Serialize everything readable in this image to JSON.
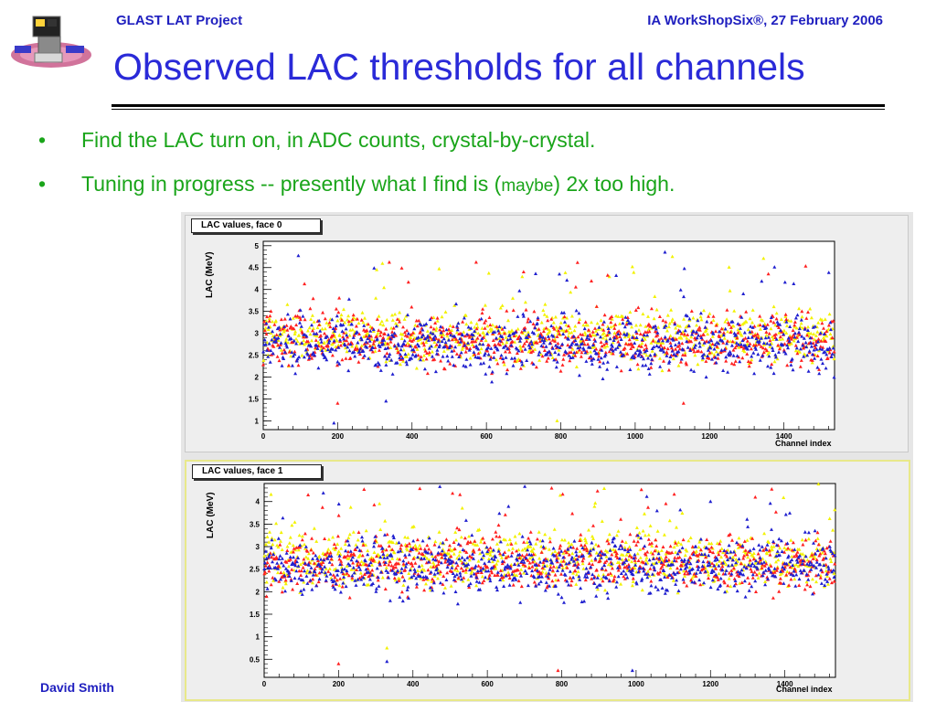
{
  "header": {
    "project": "GLAST LAT Project",
    "event": "IA WorkShopSix®, 27 February 2006"
  },
  "title": "Observed LAC thresholds for all channels",
  "bullets": [
    {
      "marker": "•",
      "text": "Find the LAC turn on, in ADC counts, crystal-by-crystal."
    },
    {
      "marker": "•",
      "pre": "Tuning in progress -- presently what I find is (",
      "small": "maybe",
      "post": ") 2x  too high."
    }
  ],
  "footer": {
    "author": "David Smith"
  },
  "colors": {
    "series_a": "#ff2020",
    "series_b": "#1f1fcf",
    "series_c": "#f2f200",
    "text_blue": "#1f1fbf",
    "bullet_green": "#1aa51a"
  },
  "chart_data": [
    {
      "type": "scatter",
      "title": "LAC values, face 0",
      "xlabel": "Channel index",
      "ylabel": "LAC (MeV)",
      "xlim": [
        0,
        1536
      ],
      "ylim": [
        0.8,
        5.1
      ],
      "xticks": [
        0,
        200,
        400,
        600,
        800,
        1000,
        1200,
        1400
      ],
      "yticks": [
        1,
        1.5,
        2,
        2.5,
        3,
        3.5,
        4,
        4.5,
        5
      ],
      "baseline": 2.85,
      "spread": 0.3,
      "outliers": [
        {
          "x": 200,
          "y": 1.4
        },
        {
          "x": 330,
          "y": 1.45
        },
        {
          "x": 790,
          "y": 1.0
        },
        {
          "x": 1130,
          "y": 1.4
        },
        {
          "x": 1080,
          "y": 4.85
        },
        {
          "x": 305,
          "y": 4.45
        },
        {
          "x": 700,
          "y": 4.4
        },
        {
          "x": 190,
          "y": 0.95
        },
        {
          "x": 1100,
          "y": 4.75
        }
      ],
      "series": [
        {
          "color": "#ff2020"
        },
        {
          "color": "#1f1fcf"
        },
        {
          "color": "#f2f200"
        }
      ]
    },
    {
      "type": "scatter",
      "title": "LAC values, face 1",
      "xlabel": "Channel index",
      "ylabel": "LAC (MeV)",
      "xlim": [
        0,
        1536
      ],
      "ylim": [
        0.1,
        4.4
      ],
      "xticks": [
        0,
        200,
        400,
        600,
        800,
        1000,
        1200,
        1400
      ],
      "yticks": [
        0.5,
        1,
        1.5,
        2,
        2.5,
        3,
        3.5,
        4
      ],
      "baseline": 2.65,
      "spread": 0.3,
      "outliers": [
        {
          "x": 200,
          "y": 0.4
        },
        {
          "x": 330,
          "y": 0.45
        },
        {
          "x": 330,
          "y": 0.75
        },
        {
          "x": 790,
          "y": 0.25
        },
        {
          "x": 990,
          "y": 0.25
        },
        {
          "x": 310,
          "y": 3.95
        },
        {
          "x": 1080,
          "y": 3.95
        },
        {
          "x": 1200,
          "y": 4.0
        }
      ],
      "series": [
        {
          "color": "#ff2020"
        },
        {
          "color": "#1f1fcf"
        },
        {
          "color": "#f2f200"
        }
      ]
    }
  ]
}
